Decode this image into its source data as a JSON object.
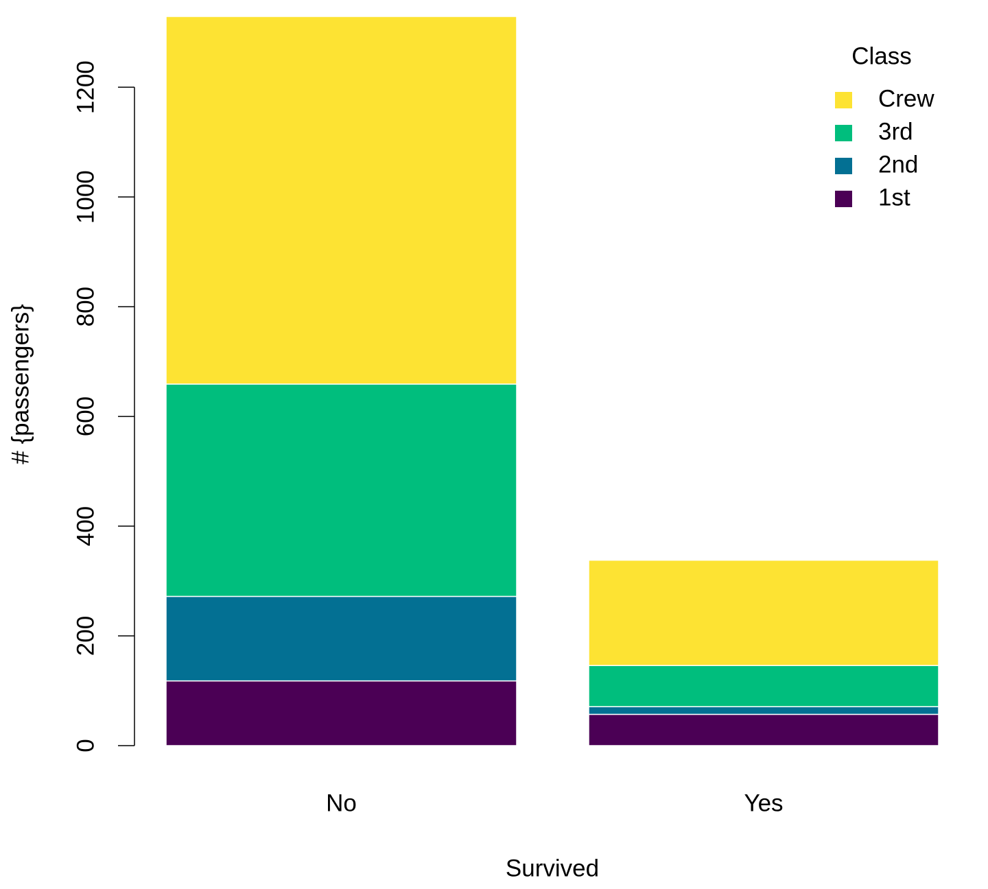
{
  "chart_data": {
    "type": "stacked-bar",
    "xlabel": "Survived",
    "ylabel": "# {passengers}",
    "categories": [
      "No",
      "Yes"
    ],
    "series": [
      {
        "name": "1st",
        "color": "#4b0055",
        "values": [
          118,
          57
        ]
      },
      {
        "name": "2nd",
        "color": "#037093",
        "values": [
          154,
          14
        ]
      },
      {
        "name": "3rd",
        "color": "#00be7d",
        "values": [
          387,
          75
        ]
      },
      {
        "name": "Crew",
        "color": "#fde333",
        "values": [
          670,
          192
        ]
      }
    ],
    "ylim": [
      0,
      1329
    ],
    "yticks": [
      0,
      200,
      400,
      600,
      800,
      1000,
      1200
    ],
    "legend_title": "Class",
    "legend": "top-right"
  }
}
